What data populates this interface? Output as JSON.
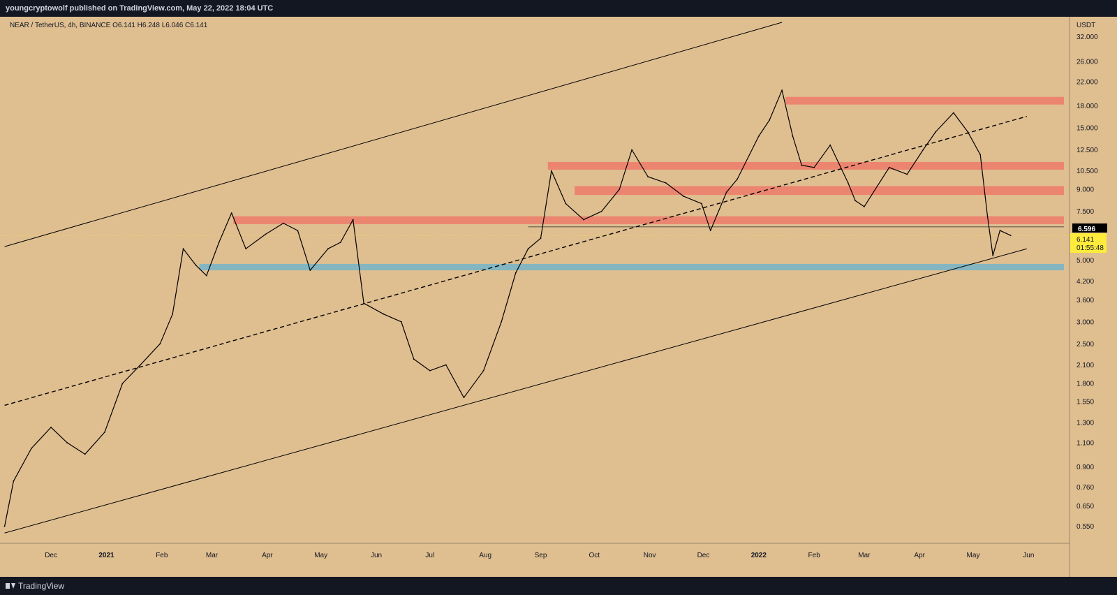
{
  "header": {
    "publish_text": "youngcryptowolf published on TradingView.com, May 22, 2022 18:04 UTC"
  },
  "footer": {
    "brand": "TradingView",
    "logo_icon": "tradingview-logo-icon"
  },
  "chart_data": {
    "type": "line",
    "symbol_line": "NEAR / TetherUS, 4h, BINANCE  O6.141  H6.248  L6.046  C6.141",
    "axis_unit": "USDT",
    "y_scale": "log",
    "ylim": [
      0.5,
      36
    ],
    "x_ticks": [
      "Dec",
      "2021",
      "Feb",
      "Mar",
      "Apr",
      "May",
      "Jun",
      "Jul",
      "Aug",
      "Sep",
      "Oct",
      "Nov",
      "Dec",
      "2022",
      "Feb",
      "Mar",
      "Apr",
      "May",
      "Jun"
    ],
    "x_tick_dates": [
      "2020-12-01",
      "2021-01-01",
      "2021-02-01",
      "2021-03-01",
      "2021-04-01",
      "2021-05-01",
      "2021-06-01",
      "2021-07-01",
      "2021-08-01",
      "2021-09-01",
      "2021-10-01",
      "2021-11-01",
      "2021-12-01",
      "2022-01-01",
      "2022-02-01",
      "2022-03-01",
      "2022-04-01",
      "2022-05-01",
      "2022-06-01"
    ],
    "y_ticks": [
      "32.000",
      "26.000",
      "22.000",
      "18.000",
      "15.000",
      "12.500",
      "10.500",
      "9.000",
      "7.500",
      "5.000",
      "4.200",
      "3.600",
      "3.000",
      "2.500",
      "2.100",
      "1.800",
      "1.550",
      "1.300",
      "1.100",
      "0.900",
      "0.760",
      "0.650",
      "0.550"
    ],
    "y_tick_values": [
      32,
      26,
      22,
      18,
      15,
      12.5,
      10.5,
      9,
      7.5,
      5,
      4.2,
      3.6,
      3,
      2.5,
      2.1,
      1.8,
      1.55,
      1.3,
      1.1,
      0.9,
      0.76,
      0.65,
      0.55
    ],
    "series": [
      {
        "x": [
          "2020-11-05",
          "2020-11-10",
          "2020-11-20",
          "2020-12-01",
          "2020-12-10",
          "2020-12-20",
          "2020-12-31",
          "2021-01-10",
          "2021-01-20",
          "2021-01-31",
          "2021-02-07",
          "2021-02-13",
          "2021-02-20",
          "2021-02-26",
          "2021-03-05",
          "2021-03-12",
          "2021-03-20",
          "2021-03-31",
          "2021-04-10",
          "2021-04-18",
          "2021-04-25",
          "2021-05-05",
          "2021-05-12",
          "2021-05-19",
          "2021-05-25",
          "2021-06-05",
          "2021-06-15",
          "2021-06-22",
          "2021-07-01",
          "2021-07-10",
          "2021-07-20",
          "2021-07-31",
          "2021-08-10",
          "2021-08-18",
          "2021-08-25",
          "2021-09-01",
          "2021-09-07",
          "2021-09-15",
          "2021-09-25",
          "2021-10-05",
          "2021-10-15",
          "2021-10-22",
          "2021-10-31",
          "2021-11-10",
          "2021-11-20",
          "2021-11-30",
          "2021-12-05",
          "2021-12-14",
          "2021-12-20",
          "2022-01-01",
          "2022-01-07",
          "2022-01-14",
          "2022-01-20",
          "2022-01-25",
          "2022-02-01",
          "2022-02-10",
          "2022-02-20",
          "2022-02-24",
          "2022-03-01",
          "2022-03-15",
          "2022-03-25",
          "2022-04-03",
          "2022-04-10",
          "2022-04-20",
          "2022-04-28",
          "2022-05-05",
          "2022-05-09",
          "2022-05-12",
          "2022-05-16",
          "2022-05-22"
        ],
        "values": [
          0.55,
          0.8,
          1.05,
          1.25,
          1.1,
          1.0,
          1.2,
          1.8,
          2.1,
          2.5,
          3.2,
          5.5,
          4.8,
          4.4,
          5.8,
          7.4,
          5.5,
          6.2,
          6.8,
          6.4,
          4.6,
          5.5,
          5.8,
          7.0,
          3.5,
          3.2,
          3.0,
          2.2,
          2.0,
          2.1,
          1.6,
          2.0,
          3.0,
          4.5,
          5.5,
          6.0,
          10.5,
          8.0,
          7.0,
          7.5,
          9.0,
          12.5,
          10.0,
          9.5,
          8.5,
          8.0,
          6.4,
          8.8,
          9.8,
          14.0,
          16.0,
          20.5,
          14.0,
          11.0,
          10.8,
          13.0,
          9.5,
          8.2,
          7.8,
          10.8,
          10.2,
          12.5,
          14.5,
          17.0,
          14.5,
          12.0,
          7.2,
          5.2,
          6.4,
          6.14
        ]
      }
    ],
    "current_price": "6.141",
    "countdown": "01:55:48",
    "high_line_label": "6.596",
    "high_line_value": 6.596,
    "line_color": "#000000",
    "background_color": "#dfbe90",
    "resistance_color": "#ec8570",
    "support_color": "#84b6c2",
    "current_price_color": "#ffeb3b",
    "resistance_zones": [
      [
        18.2,
        19.4
      ],
      [
        10.6,
        11.3
      ],
      [
        8.6,
        9.25
      ],
      [
        6.75,
        7.2
      ]
    ],
    "support_zones": [
      [
        4.6,
        4.85
      ]
    ],
    "trendlines": [
      {
        "style": "solid",
        "from": [
          "2020-11-05",
          5.6
        ],
        "to": [
          "2022-01-14",
          36
        ]
      },
      {
        "style": "dashed",
        "from": [
          "2020-11-05",
          1.5
        ],
        "to": [
          "2022-05-31",
          16.5
        ]
      },
      {
        "style": "solid",
        "from": [
          "2020-11-05",
          0.52
        ],
        "to": [
          "2022-05-31",
          5.5
        ]
      }
    ]
  }
}
